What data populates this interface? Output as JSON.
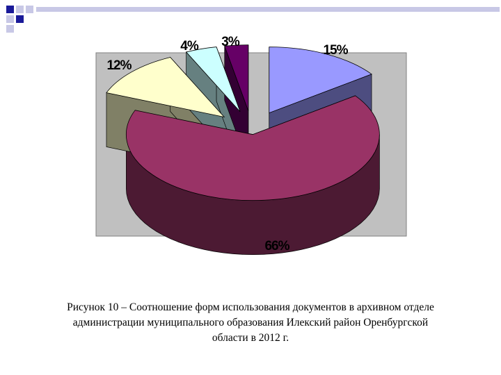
{
  "chart_data": {
    "type": "pie",
    "style": "3d-exploded",
    "categories": [
      "",
      "",
      "",
      "",
      ""
    ],
    "values": [
      15,
      66,
      12,
      4,
      3
    ],
    "labels": [
      "15%",
      "66%",
      "12%",
      "4%",
      "3%"
    ],
    "colors": [
      "#9999ff",
      "#993366",
      "#ffffcc",
      "#ccffff",
      "#660066"
    ],
    "side_colors": [
      "#4d4d80",
      "#4c1a33",
      "#808066",
      "#668080",
      "#330033"
    ],
    "plot_background": "#c0c0c0",
    "legend": "none"
  },
  "caption": {
    "line1": "Рисунок 10 – Соотношение форм использования документов в архивном отделе",
    "line2": "администрации муниципального образования Илекский район Оренбургской",
    "line3": "области в 2012 г."
  },
  "decoration": {
    "colors": [
      "#1a1a99",
      "#c8c8e6"
    ]
  }
}
